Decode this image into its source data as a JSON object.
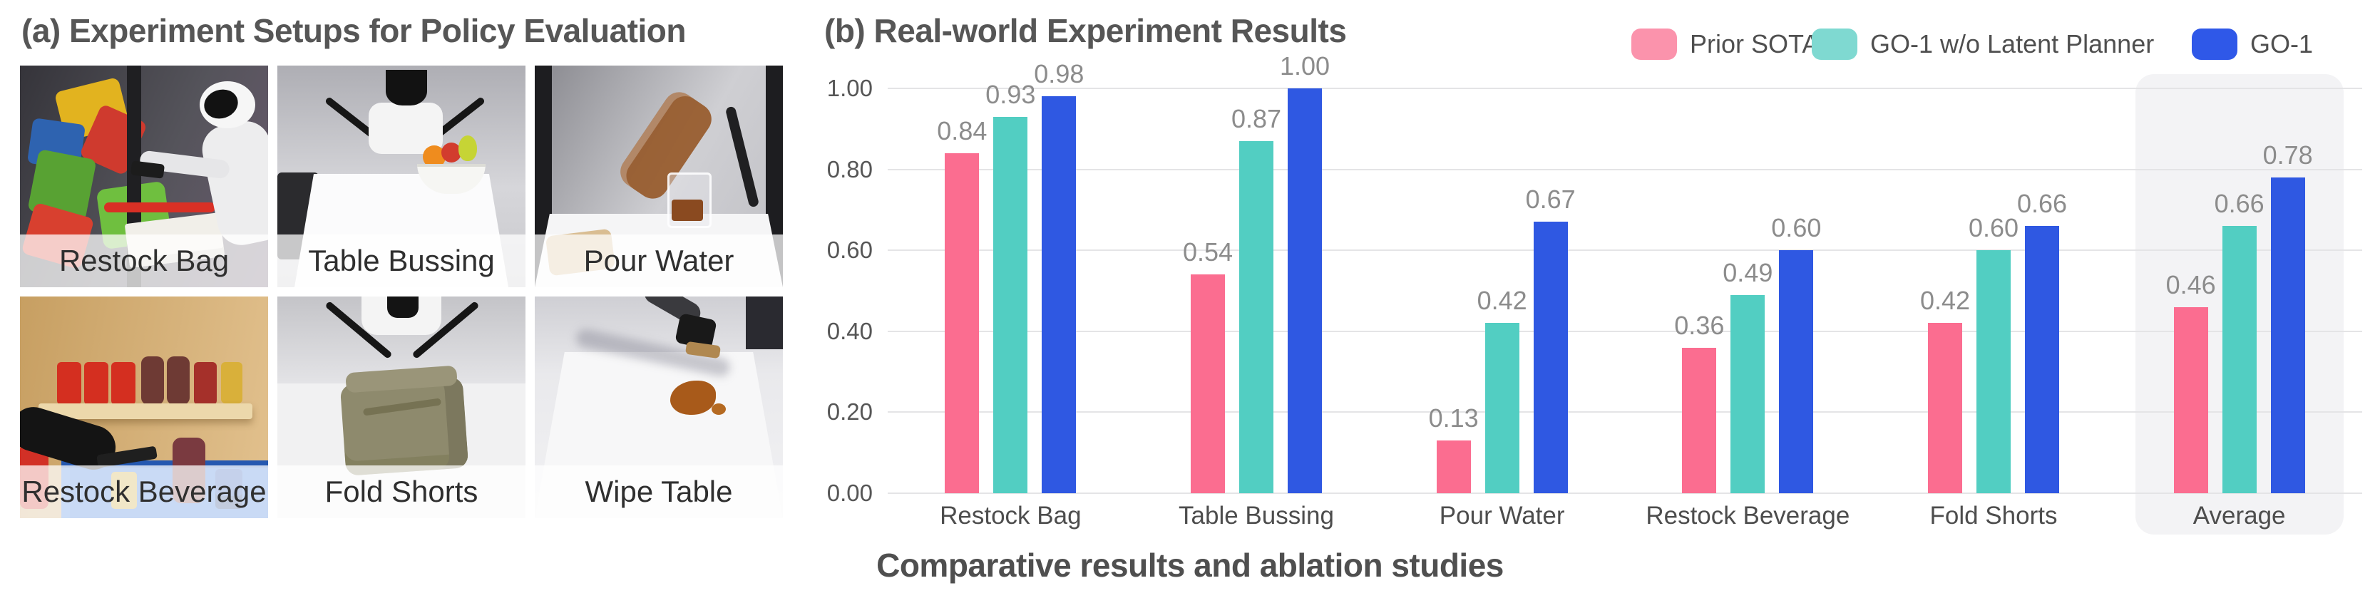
{
  "panel_a": {
    "title": "(a) Experiment Setups for Policy Evaluation",
    "tiles": [
      {
        "label": "Restock Bag"
      },
      {
        "label": "Table Bussing"
      },
      {
        "label": "Pour Water"
      },
      {
        "label": "Restock Beverage"
      },
      {
        "label": "Fold Shorts"
      },
      {
        "label": "Wipe Table"
      }
    ]
  },
  "panel_b": {
    "title": "(b) Real-world Experiment Results",
    "caption": "Comparative results and ablation studies",
    "legend": [
      {
        "label": "Prior SOTA",
        "color": "#FB93AC"
      },
      {
        "label": "GO-1 w/o Latent Planner",
        "color": "#7FD9D1"
      },
      {
        "label": "GO-1",
        "color": "#2F58E8"
      }
    ]
  },
  "chart_data": {
    "type": "bar",
    "title": "(b) Real-world Experiment Results",
    "categories": [
      "Restock Bag",
      "Table Bussing",
      "Pour Water",
      "Restock Beverage",
      "Fold Shorts",
      "Average"
    ],
    "series": [
      {
        "name": "Prior SOTA",
        "color": "#FB6D90",
        "values": [
          0.84,
          0.54,
          0.13,
          0.36,
          0.42,
          0.46
        ]
      },
      {
        "name": "GO-1 w/o Latent Planner",
        "color": "#52CEC2",
        "values": [
          0.93,
          0.87,
          0.42,
          0.49,
          0.6,
          0.66
        ]
      },
      {
        "name": "GO-1",
        "color": "#2F58E2",
        "values": [
          0.98,
          1.0,
          0.67,
          0.6,
          0.66,
          0.78
        ]
      }
    ],
    "ylim": [
      0,
      1.0
    ],
    "yticks": [
      "0.00",
      "0.20",
      "0.40",
      "0.60",
      "0.80",
      "1.00"
    ],
    "grid": true,
    "legend_position": "top-right",
    "highlight_category": "Average",
    "value_labels": true
  }
}
